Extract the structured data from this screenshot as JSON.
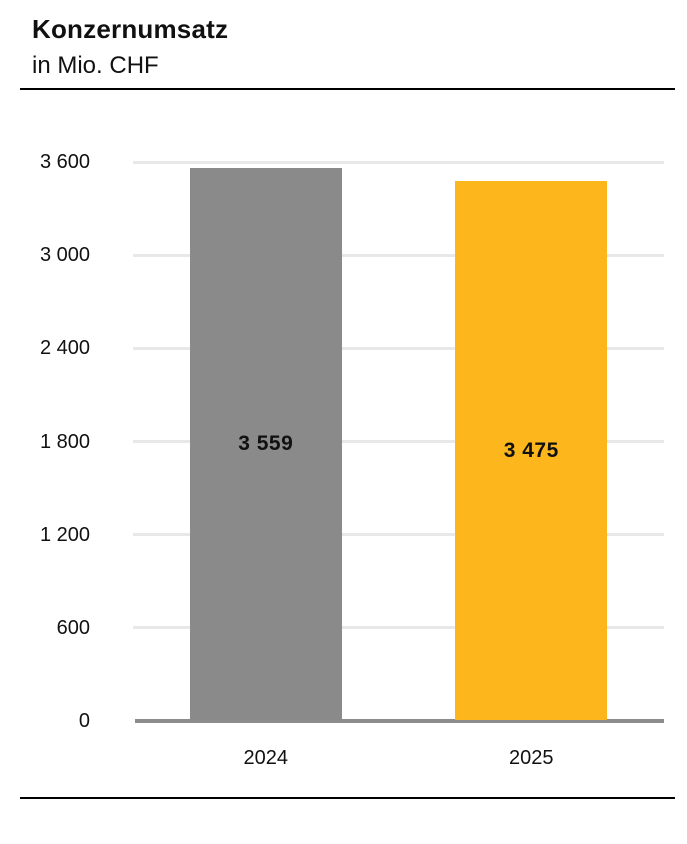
{
  "chart_data": {
    "type": "bar",
    "title": "Konzernumsatz",
    "subtitle": "in Mio. CHF",
    "categories": [
      "2024",
      "2025"
    ],
    "values": [
      3559,
      3475
    ],
    "value_labels": [
      "3 559",
      "3 475"
    ],
    "series_colors": [
      "#8A8A8A",
      "#FDB71C"
    ],
    "ylim": [
      0,
      3600
    ],
    "ytick_step": 600,
    "ytick_labels": [
      "0",
      "600",
      "1 200",
      "1 800",
      "2 400",
      "3 000",
      "3 600"
    ],
    "xlabel": "",
    "ylabel": "",
    "grid": "horizontal",
    "legend_position": "none",
    "colors": {
      "background": "#FFFFFF",
      "gridline": "#E8E8E8",
      "axis_baseline": "#8C8C8C",
      "divider": "#000000",
      "text": "#111111"
    }
  }
}
